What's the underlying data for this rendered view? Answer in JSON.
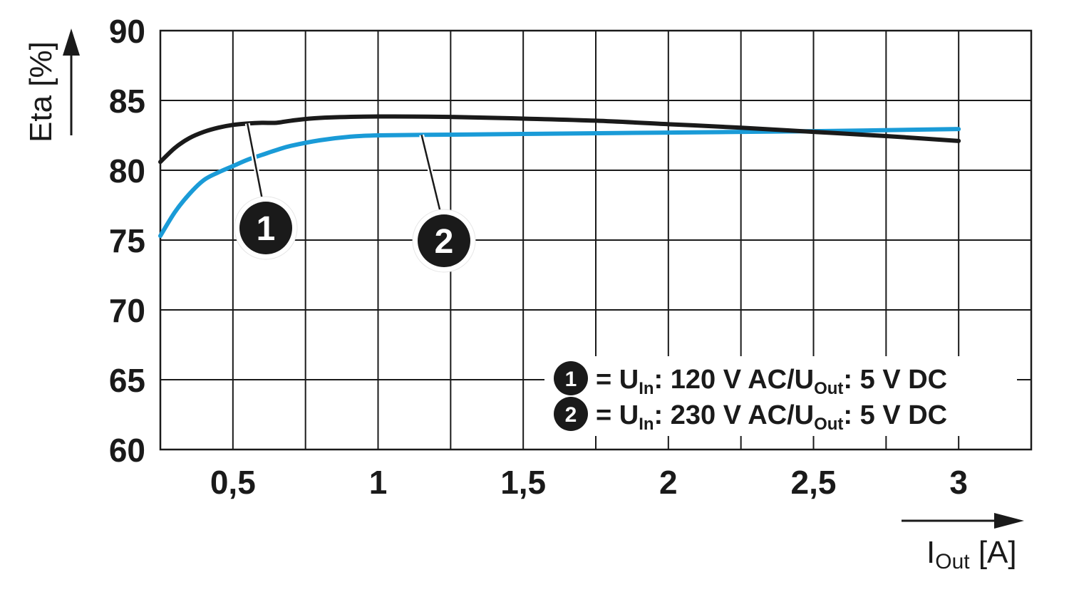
{
  "chart_data": {
    "type": "line",
    "ylabel": "Eta [%]",
    "xlabel_main": "I",
    "xlabel_sub": "Out",
    "xlabel_unit": " [A]",
    "xlim": [
      0.25,
      3.25
    ],
    "ylim": [
      60,
      90
    ],
    "grid": true,
    "x_ticks": [
      0.5,
      1,
      1.5,
      2,
      2.5,
      3
    ],
    "x_tick_labels": [
      "0,5",
      "1",
      "1,5",
      "2",
      "2,5",
      "3"
    ],
    "y_ticks": [
      60,
      65,
      70,
      75,
      80,
      85,
      90
    ],
    "y_tick_labels": [
      "60",
      "65",
      "70",
      "75",
      "80",
      "85",
      "90"
    ],
    "legend_position": "bottom-right",
    "series": [
      {
        "marker": "1",
        "color": "#1a1a1a",
        "legend": {
          "pre": "= U",
          "sub1": "In",
          "mid": ": 120 V AC/U",
          "sub2": "Out",
          "post": ": 5 V DC"
        },
        "x": [
          0.25,
          0.3,
          0.35,
          0.4,
          0.45,
          0.5,
          0.55,
          0.6,
          0.65,
          0.7,
          0.8,
          1.0,
          1.25,
          1.5,
          1.75,
          2.0,
          2.25,
          2.5,
          2.75,
          3.0
        ],
        "y": [
          80.6,
          81.6,
          82.3,
          82.75,
          83.05,
          83.25,
          83.35,
          83.4,
          83.4,
          83.55,
          83.75,
          83.85,
          83.82,
          83.7,
          83.55,
          83.3,
          83.05,
          82.75,
          82.45,
          82.1
        ]
      },
      {
        "marker": "2",
        "color": "#1a9bd7",
        "legend": {
          "pre": "= U",
          "sub1": "In",
          "mid": ": 230 V AC/U",
          "sub2": "Out",
          "post": ": 5 V DC"
        },
        "x": [
          0.25,
          0.3,
          0.35,
          0.4,
          0.45,
          0.5,
          0.55,
          0.6,
          0.65,
          0.7,
          0.8,
          0.9,
          1.0,
          1.25,
          1.5,
          2.0,
          2.5,
          3.0
        ],
        "y": [
          75.3,
          77.0,
          78.3,
          79.3,
          79.85,
          80.3,
          80.75,
          81.1,
          81.45,
          81.75,
          82.15,
          82.4,
          82.5,
          82.55,
          82.6,
          82.7,
          82.8,
          82.95
        ]
      }
    ],
    "annotations": [
      {
        "label": "1",
        "series": 0,
        "at_x": 0.55
      },
      {
        "label": "2",
        "series": 1,
        "at_x": 1.15
      }
    ]
  }
}
